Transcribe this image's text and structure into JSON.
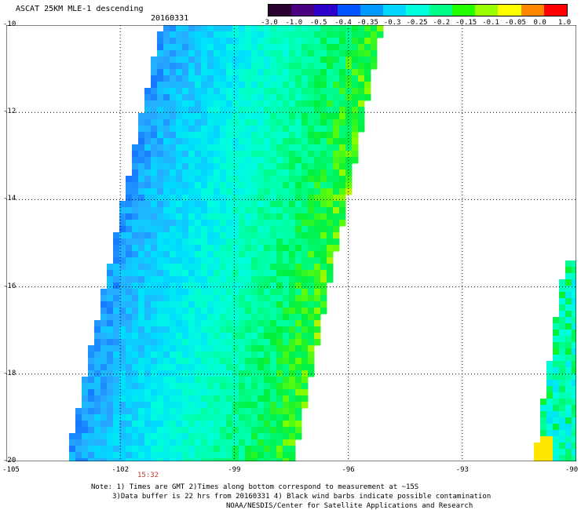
{
  "header": {
    "title": "ASCAT 25KM MLE-1 descending",
    "date": "20160331"
  },
  "colorbar": {
    "tick_labels": [
      "-3.0",
      "-1.0",
      "-0.5",
      "-0.4",
      "-0.35",
      "-0.3",
      "-0.25",
      "-0.2",
      "-0.15",
      "-0.1",
      "-0.05",
      "0.0",
      "1.0"
    ],
    "colors": [
      "#2a0030",
      "#4b0082",
      "#2c00c8",
      "#0055ff",
      "#0099ff",
      "#00d6ff",
      "#00ffdd",
      "#00ff88",
      "#22ff00",
      "#99ff00",
      "#ffff00",
      "#ff8800",
      "#ff0000"
    ]
  },
  "axes": {
    "x_ticks": [
      "-105",
      "-102",
      "-99",
      "-96",
      "-93",
      "-90"
    ],
    "y_ticks": [
      "-10",
      "-12",
      "-14",
      "-16",
      "-18",
      "-20"
    ]
  },
  "pass_time": "15:32",
  "notes": {
    "line1": "Note: 1) Times are GMT 2)Times along bottom correspond to measurement at ~15S",
    "line2": "3)Data buffer is 22 hrs from 20160331 4) Black wind barbs indicate possible contamination",
    "line3": "NOAA/NESDIS/Center for Satellite Applications and Research"
  }
}
